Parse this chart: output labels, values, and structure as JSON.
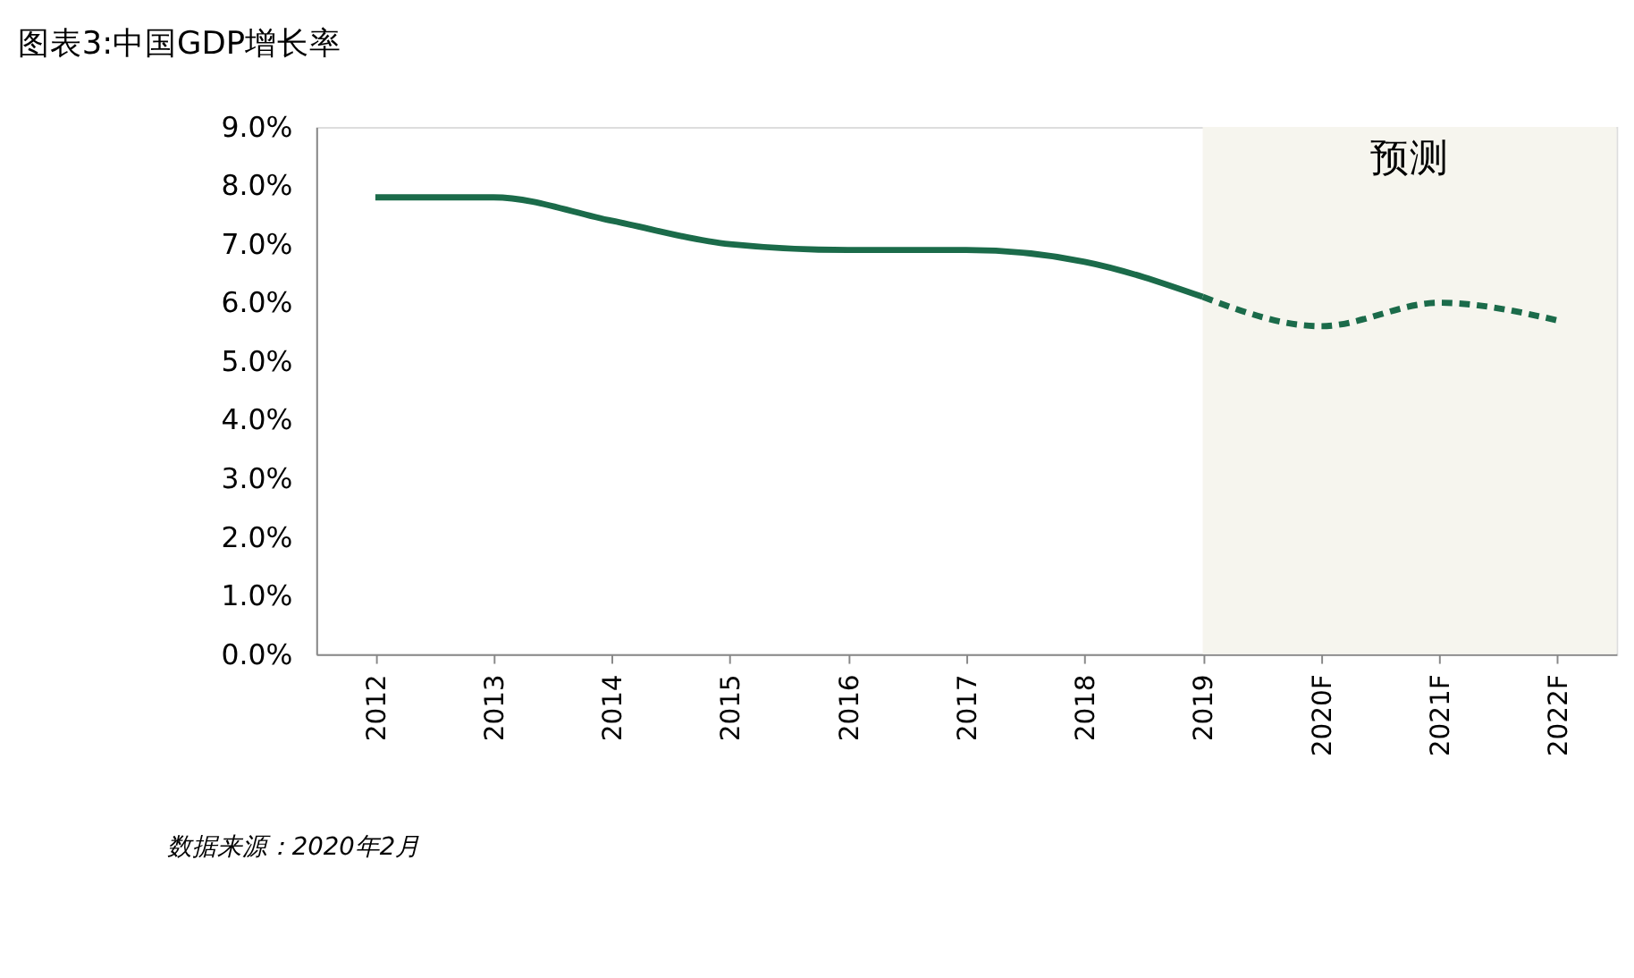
{
  "chart_data": {
    "type": "line",
    "title": "图表3:中国GDP增长率",
    "categories": [
      "2012",
      "2013",
      "2014",
      "2015",
      "2016",
      "2017",
      "2018",
      "2019",
      "2020F",
      "2021F",
      "2022F"
    ],
    "series": [
      {
        "color": "#1b6b4a",
        "line_style": "solid",
        "values": [
          7.8,
          7.8,
          7.4,
          7.0,
          6.9,
          6.9,
          6.7,
          6.1,
          null,
          null,
          null
        ]
      },
      {
        "color": "#1b6b4a",
        "line_style": "dashed",
        "values": [
          null,
          null,
          null,
          null,
          null,
          null,
          null,
          6.1,
          5.6,
          6.0,
          5.7
        ]
      }
    ],
    "ylim": [
      0,
      9
    ],
    "yticks": [
      {
        "value": 0,
        "label": "0.0%"
      },
      {
        "value": 1,
        "label": "1.0%"
      },
      {
        "value": 2,
        "label": "2.0%"
      },
      {
        "value": 3,
        "label": "3.0%"
      },
      {
        "value": 4,
        "label": "4.0%"
      },
      {
        "value": 5,
        "label": "5.0%"
      },
      {
        "value": 6,
        "label": "6.0%"
      },
      {
        "value": 7,
        "label": "7.0%"
      },
      {
        "value": 8,
        "label": "8.0%"
      },
      {
        "value": 9,
        "label": "9.0%"
      }
    ],
    "bands": [
      {
        "axis": "x",
        "from": "2019",
        "to": "2022F",
        "label": "预测",
        "color": "#f6f5ee"
      }
    ],
    "annotations": [
      "数据来源：2020年2月"
    ],
    "grid": false,
    "legend": false,
    "marker": "none"
  }
}
